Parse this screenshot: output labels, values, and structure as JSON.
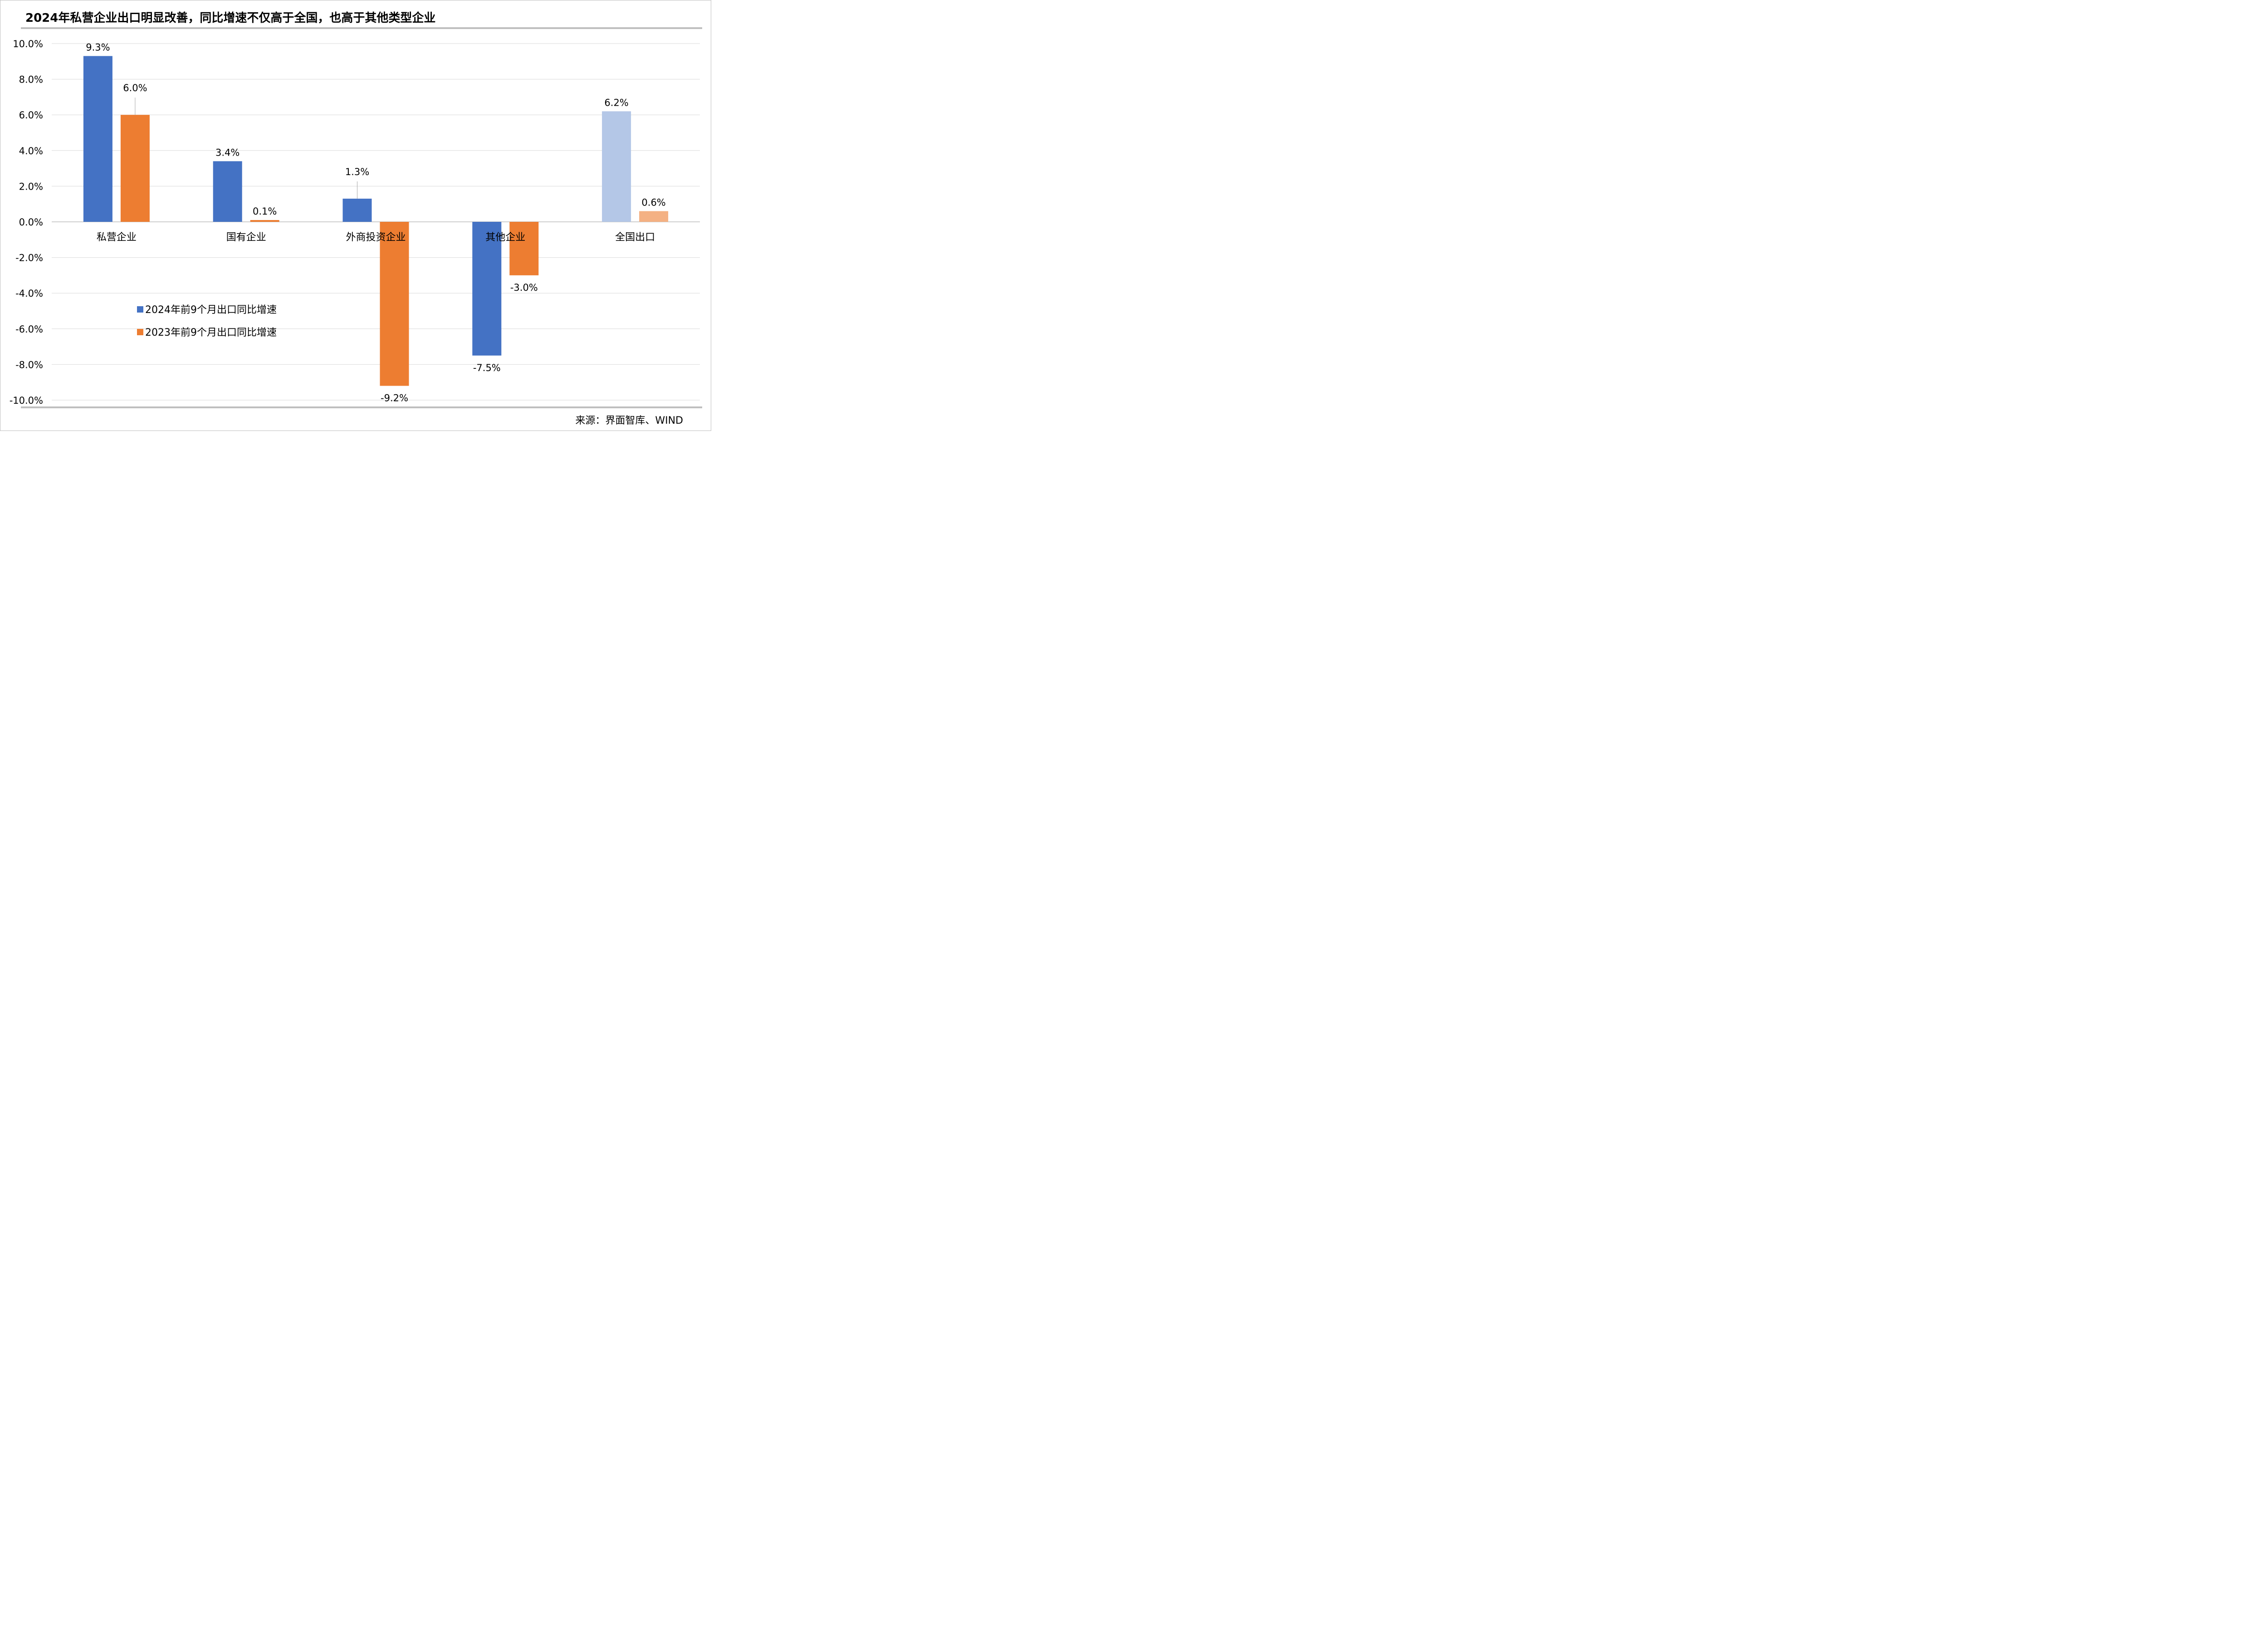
{
  "chart_data": {
    "type": "bar",
    "title": "2024年私营企业出口明显改善，同比增速不仅高于全国，也高于其他类型企业",
    "categories": [
      "私营企业",
      "国有企业",
      "外商投资企业",
      "其他企业",
      "全国出口"
    ],
    "series": [
      {
        "name": "2024年前9个月出口同比增速",
        "values": [
          9.3,
          3.4,
          1.3,
          -7.5,
          6.2
        ],
        "data_labels": [
          "9.3%",
          "3.4%",
          "1.3%",
          "-7.5%",
          "6.2%"
        ]
      },
      {
        "name": "2023年前9个月出口同比增速",
        "values": [
          6.0,
          0.1,
          -9.2,
          -3.0,
          0.6
        ],
        "data_labels": [
          "6.0%",
          "0.1%",
          "-9.2%",
          "-3.0%",
          "0.6%"
        ]
      }
    ],
    "y_ticks": [
      "10.0%",
      "8.0%",
      "6.0%",
      "4.0%",
      "2.0%",
      "0.0%",
      "-2.0%",
      "-4.0%",
      "-6.0%",
      "-8.0%",
      "-10.0%"
    ],
    "ylim": [
      -10,
      10
    ],
    "grid": true,
    "legend_position": "lower-left",
    "colors": {
      "series_2024": "#4472C4",
      "series_2023": "#ED7D31",
      "total_2024": "#B4C7E7",
      "total_2023": "#F4B183"
    },
    "source": "来源：界面智库、WIND"
  }
}
